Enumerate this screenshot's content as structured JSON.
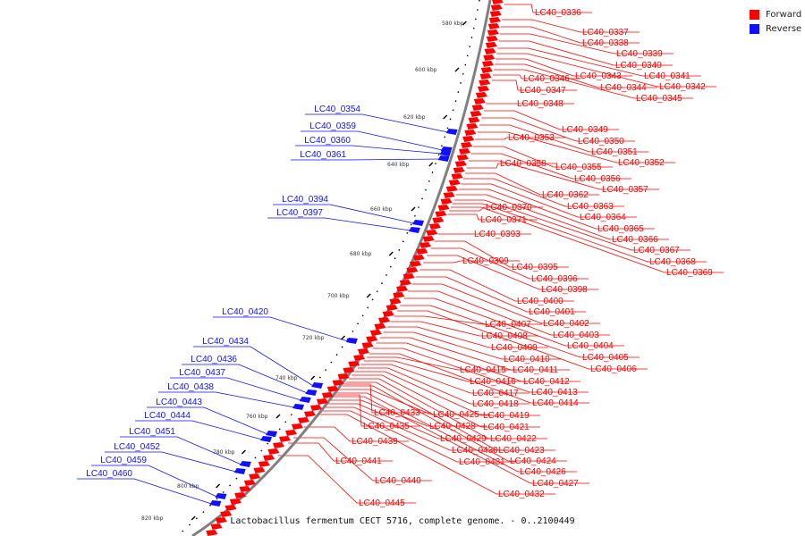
{
  "caption": "Lactobacillus fermentum CECT 5716, complete genome. - 0..2100449",
  "legend": [
    {
      "label": "Forward",
      "color": "#ff0000"
    },
    {
      "label": "Reverse",
      "color": "#1010ff"
    }
  ],
  "colors": {
    "forward": "#ff0000",
    "reverse": "#1010ff",
    "backbone": "#808080",
    "ticks": "#000000"
  },
  "ticks": [
    "580 kbp",
    "600 kbp",
    "620 kbp",
    "640 kbp",
    "660 kbp",
    "680 kbp",
    "700 kbp",
    "720 kbp",
    "740 kbp",
    "760 kbp",
    "780 kbp",
    "800 kbp",
    "820 kbp"
  ],
  "forward_genes": [
    "LC40_0336",
    "LC40_0337",
    "LC40_0338",
    "LC40_0339",
    "LC40_0340",
    "LC40_0341",
    "LC40_0342",
    "LC40_0343",
    "LC40_0344",
    "LC40_0345",
    "LC40_0346",
    "LC40_0347",
    "LC40_0348",
    "LC40_0349",
    "LC40_0350",
    "LC40_0351",
    "LC40_0352",
    "LC40_0353",
    "LC40_0355",
    "LC40_0356",
    "LC40_0357",
    "LC40_0358",
    "LC40_0362",
    "LC40_0363",
    "LC40_0364",
    "LC40_0365",
    "LC40_0366",
    "LC40_0367",
    "LC40_0368",
    "LC40_0369",
    "LC40_0370",
    "LC40_0371",
    "LC40_0393",
    "LC40_0395",
    "LC40_0396",
    "LC40_0398",
    "LC40_0399",
    "LC40_0400",
    "LC40_0401",
    "LC40_0402",
    "LC40_0403",
    "LC40_0404",
    "LC40_0405",
    "LC40_0406",
    "LC40_0407",
    "LC40_0408",
    "LC40_0409",
    "LC40_0410",
    "LC40_0411",
    "LC40_0412",
    "LC40_0413",
    "LC40_0414",
    "LC40_0415",
    "LC40_0416",
    "LC40_0417",
    "LC40_0418",
    "LC40_0419",
    "LC40_0421",
    "LC40_0422",
    "LC40_0423",
    "LC40_0424",
    "LC40_0425",
    "LC40_0426",
    "LC40_0427",
    "LC40_0428",
    "LC40_0429",
    "LC40_0430",
    "LC40_0431",
    "LC40_0432",
    "LC40_0433",
    "LC40_0435",
    "LC40_0439",
    "LC40_0440",
    "LC40_0441",
    "LC40_0445"
  ],
  "reverse_genes": [
    "LC40_0354",
    "LC40_0359",
    "LC40_0360",
    "LC40_0361",
    "LC40_0394",
    "LC40_0397",
    "LC40_0420",
    "LC40_0434",
    "LC40_0436",
    "LC40_0437",
    "LC40_0438",
    "LC40_0443",
    "LC40_0444",
    "LC40_0451",
    "LC40_0452",
    "LC40_0459",
    "LC40_0460"
  ]
}
